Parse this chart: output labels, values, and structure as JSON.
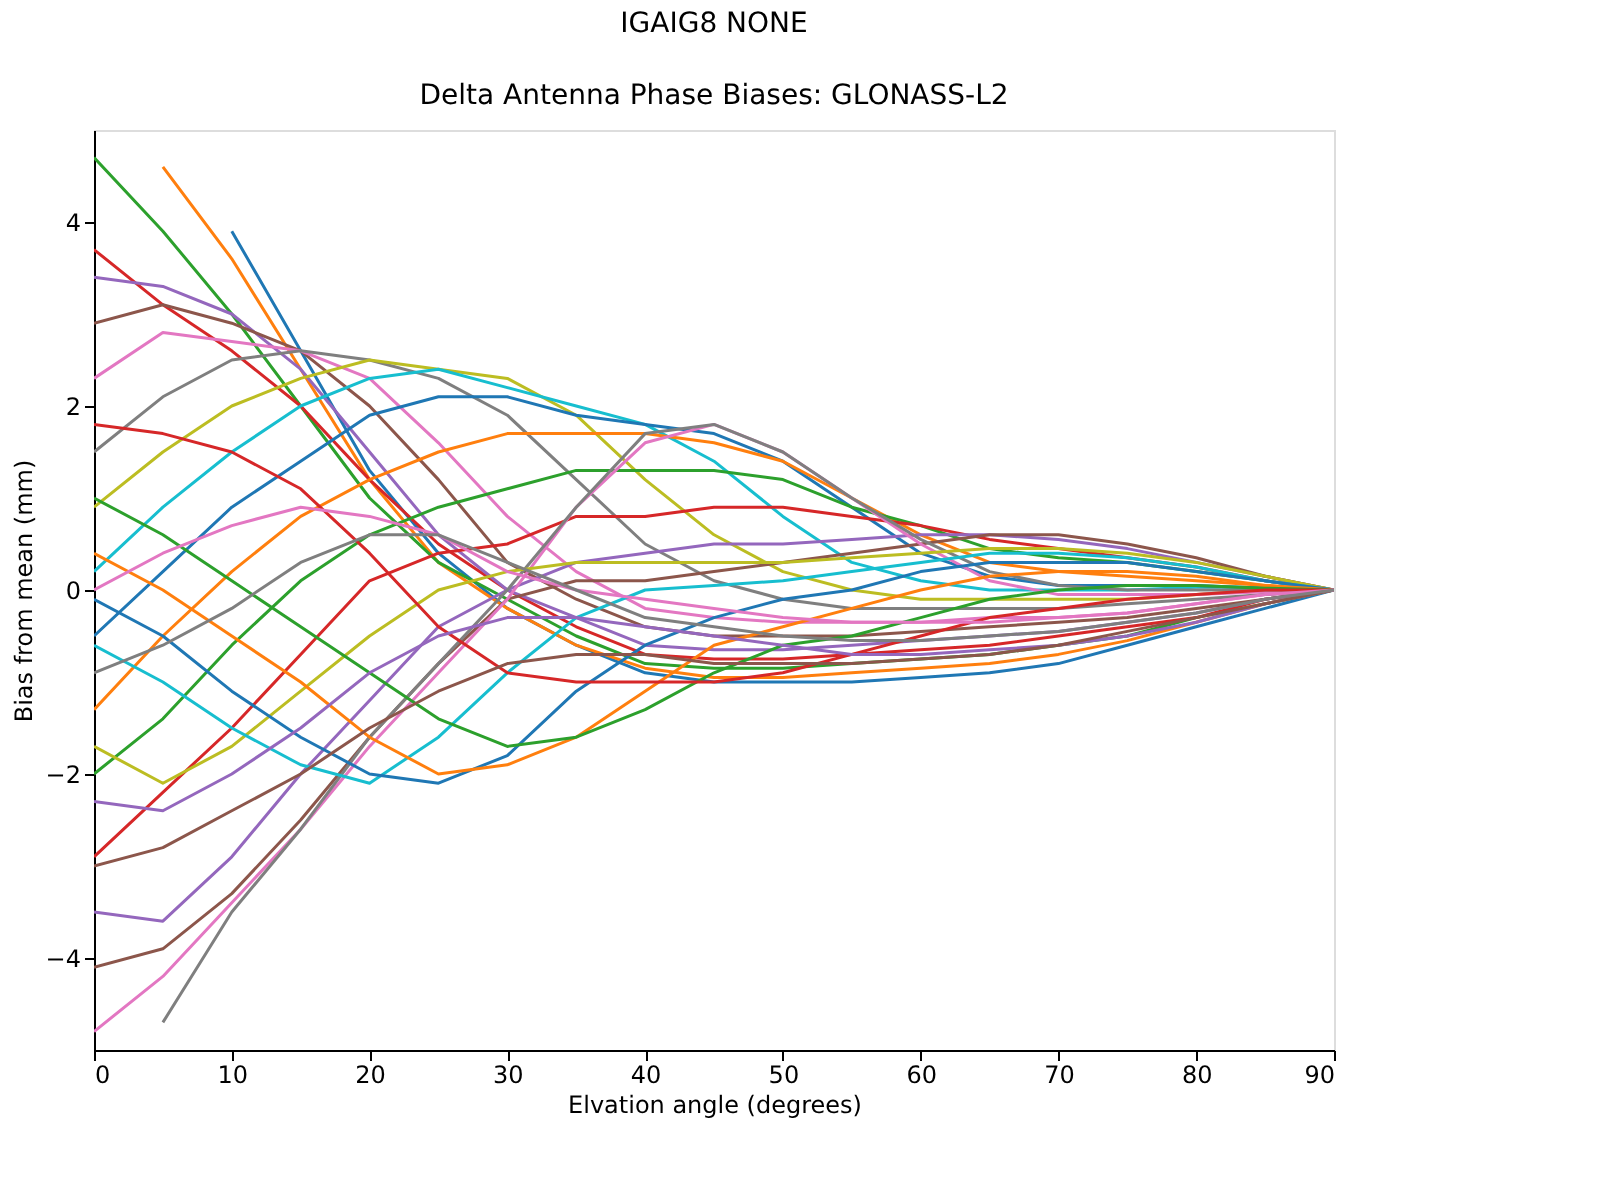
{
  "chart_data": {
    "type": "line",
    "title": "IGAIG8          NONE",
    "subtitle": "Delta Antenna Phase Biases: GLONASS-L2",
    "xlabel": "Elvation angle (degrees)",
    "ylabel": "Bias from mean (mm)",
    "x": [
      0,
      5,
      10,
      15,
      20,
      25,
      30,
      35,
      40,
      45,
      50,
      55,
      60,
      65,
      70,
      75,
      80,
      85,
      90
    ],
    "xlim": [
      0,
      90
    ],
    "xticks": [
      0,
      10,
      20,
      30,
      40,
      50,
      60,
      70,
      80,
      90
    ],
    "ylim": [
      -5,
      5
    ],
    "yticks": [
      -4,
      -2,
      0,
      2,
      4
    ],
    "grid": false,
    "legend": false,
    "line_style": "solid",
    "marker": "none",
    "series": [
      {
        "color": "#1f77b4",
        "values": [
          null,
          null,
          3.9,
          2.6,
          1.3,
          0.4,
          -0.2,
          -0.6,
          -0.9,
          -1.0,
          -1.0,
          -1.0,
          -0.95,
          -0.9,
          -0.8,
          -0.6,
          -0.4,
          -0.2,
          0
        ]
      },
      {
        "color": "#ff7f0e",
        "values": [
          null,
          4.6,
          3.6,
          2.4,
          1.2,
          0.3,
          -0.2,
          -0.6,
          -0.85,
          -0.95,
          -0.95,
          -0.9,
          -0.85,
          -0.8,
          -0.7,
          -0.55,
          -0.35,
          -0.15,
          0
        ]
      },
      {
        "color": "#2ca02c",
        "values": [
          4.7,
          3.9,
          3.0,
          2.0,
          1.0,
          0.3,
          -0.1,
          -0.5,
          -0.8,
          -0.85,
          -0.85,
          -0.8,
          -0.75,
          -0.7,
          -0.6,
          -0.5,
          -0.3,
          -0.15,
          0
        ]
      },
      {
        "color": "#d62728",
        "values": [
          3.7,
          3.1,
          2.6,
          2.0,
          1.2,
          0.5,
          0.0,
          -0.4,
          -0.7,
          -0.75,
          -0.75,
          -0.7,
          -0.65,
          -0.6,
          -0.5,
          -0.4,
          -0.3,
          -0.1,
          0
        ]
      },
      {
        "color": "#9467bd",
        "values": [
          3.4,
          3.3,
          3.0,
          2.4,
          1.5,
          0.6,
          0.0,
          -0.3,
          -0.6,
          -0.65,
          -0.65,
          -0.6,
          -0.55,
          -0.5,
          -0.45,
          -0.35,
          -0.25,
          -0.1,
          0
        ]
      },
      {
        "color": "#8c564b",
        "values": [
          2.9,
          3.1,
          2.9,
          2.6,
          2.0,
          1.2,
          0.3,
          -0.1,
          -0.4,
          -0.5,
          -0.5,
          -0.5,
          -0.45,
          -0.4,
          -0.35,
          -0.3,
          -0.2,
          -0.1,
          0
        ]
      },
      {
        "color": "#e377c2",
        "values": [
          2.3,
          2.8,
          2.7,
          2.6,
          2.3,
          1.6,
          0.8,
          0.2,
          -0.2,
          -0.3,
          -0.35,
          -0.35,
          -0.35,
          -0.3,
          -0.3,
          -0.25,
          -0.15,
          -0.05,
          0
        ]
      },
      {
        "color": "#7f7f7f",
        "values": [
          1.5,
          2.1,
          2.5,
          2.6,
          2.5,
          2.3,
          1.9,
          1.2,
          0.5,
          0.1,
          -0.1,
          -0.2,
          -0.2,
          -0.2,
          -0.2,
          -0.15,
          -0.1,
          -0.05,
          0
        ]
      },
      {
        "color": "#bcbd22",
        "values": [
          0.9,
          1.5,
          2.0,
          2.3,
          2.5,
          2.4,
          2.3,
          1.9,
          1.2,
          0.6,
          0.2,
          0.0,
          -0.1,
          -0.1,
          -0.1,
          -0.1,
          -0.05,
          0,
          0
        ]
      },
      {
        "color": "#17becf",
        "values": [
          0.2,
          0.9,
          1.5,
          2.0,
          2.3,
          2.4,
          2.2,
          2.0,
          1.8,
          1.4,
          0.8,
          0.3,
          0.1,
          0.0,
          0.0,
          0.0,
          0.03,
          0.03,
          0
        ]
      },
      {
        "color": "#1f77b4",
        "values": [
          -0.5,
          0.2,
          0.9,
          1.4,
          1.9,
          2.1,
          2.1,
          1.9,
          1.8,
          1.7,
          1.4,
          0.9,
          0.4,
          0.15,
          0.05,
          0.05,
          0.05,
          0.02,
          0
        ]
      },
      {
        "color": "#ff7f0e",
        "values": [
          -1.3,
          -0.5,
          0.2,
          0.8,
          1.2,
          1.5,
          1.7,
          1.7,
          1.7,
          1.6,
          1.4,
          1.0,
          0.6,
          0.3,
          0.2,
          0.15,
          0.1,
          0.05,
          0
        ]
      },
      {
        "color": "#2ca02c",
        "values": [
          -2.0,
          -1.4,
          -0.6,
          0.1,
          0.6,
          0.9,
          1.1,
          1.3,
          1.3,
          1.3,
          1.2,
          0.9,
          0.7,
          0.45,
          0.35,
          0.3,
          0.2,
          0.1,
          0
        ]
      },
      {
        "color": "#d62728",
        "values": [
          -2.9,
          -2.2,
          -1.5,
          -0.7,
          0.1,
          0.4,
          0.5,
          0.8,
          0.8,
          0.9,
          0.9,
          0.8,
          0.7,
          0.55,
          0.45,
          0.35,
          0.25,
          0.1,
          0
        ]
      },
      {
        "color": "#9467bd",
        "values": [
          -3.5,
          -3.6,
          -2.9,
          -2.0,
          -1.2,
          -0.4,
          0.0,
          0.3,
          0.4,
          0.5,
          0.5,
          0.55,
          0.6,
          0.6,
          0.55,
          0.45,
          0.3,
          0.15,
          0
        ]
      },
      {
        "color": "#8c564b",
        "values": [
          -4.1,
          -3.9,
          -3.3,
          -2.5,
          -1.6,
          -0.8,
          -0.1,
          0.1,
          0.1,
          0.2,
          0.3,
          0.4,
          0.5,
          0.6,
          0.6,
          0.5,
          0.35,
          0.15,
          0
        ]
      },
      {
        "color": "#e377c2",
        "values": [
          -4.8,
          -4.2,
          -3.4,
          -2.6,
          -1.7,
          -0.9,
          -0.1,
          0.9,
          1.6,
          1.8,
          1.5,
          1.0,
          0.5,
          0.1,
          -0.05,
          -0.05,
          -0.05,
          -0.02,
          0
        ]
      },
      {
        "color": "#7f7f7f",
        "values": [
          null,
          -4.7,
          -3.5,
          -2.6,
          -1.6,
          -0.8,
          0.0,
          0.9,
          1.7,
          1.8,
          1.5,
          1.0,
          0.55,
          0.2,
          0.05,
          0.0,
          0.0,
          0.0,
          0
        ]
      },
      {
        "color": "#bcbd22",
        "values": [
          -1.7,
          -2.1,
          -1.7,
          -1.1,
          -0.5,
          0.0,
          0.2,
          0.3,
          0.3,
          0.3,
          0.3,
          0.35,
          0.4,
          0.45,
          0.45,
          0.4,
          0.3,
          0.15,
          0
        ]
      },
      {
        "color": "#17becf",
        "values": [
          -0.6,
          -1.0,
          -1.5,
          -1.9,
          -2.1,
          -1.6,
          -0.9,
          -0.3,
          0.0,
          0.05,
          0.1,
          0.2,
          0.3,
          0.4,
          0.4,
          0.35,
          0.25,
          0.1,
          0
        ]
      },
      {
        "color": "#1f77b4",
        "values": [
          -0.1,
          -0.5,
          -1.1,
          -1.6,
          -2.0,
          -2.1,
          -1.8,
          -1.1,
          -0.6,
          -0.3,
          -0.1,
          0.0,
          0.2,
          0.3,
          0.3,
          0.3,
          0.2,
          0.1,
          0
        ]
      },
      {
        "color": "#ff7f0e",
        "values": [
          0.4,
          0.0,
          -0.5,
          -1.0,
          -1.6,
          -2.0,
          -1.9,
          -1.6,
          -1.1,
          -0.6,
          -0.4,
          -0.2,
          0.0,
          0.15,
          0.2,
          0.2,
          0.15,
          0.05,
          0
        ]
      },
      {
        "color": "#2ca02c",
        "values": [
          1.0,
          0.6,
          0.1,
          -0.4,
          -0.9,
          -1.4,
          -1.7,
          -1.6,
          -1.3,
          -0.9,
          -0.6,
          -0.5,
          -0.3,
          -0.1,
          0.0,
          0.05,
          0.05,
          0.02,
          0
        ]
      },
      {
        "color": "#d62728",
        "values": [
          1.8,
          1.7,
          1.5,
          1.1,
          0.4,
          -0.4,
          -0.9,
          -1.0,
          -1.0,
          -1.0,
          -0.9,
          -0.7,
          -0.5,
          -0.3,
          -0.2,
          -0.1,
          -0.05,
          0,
          0
        ]
      },
      {
        "color": "#9467bd",
        "values": [
          -2.3,
          -2.4,
          -2.0,
          -1.5,
          -0.9,
          -0.5,
          -0.3,
          -0.3,
          -0.4,
          -0.5,
          -0.6,
          -0.7,
          -0.7,
          -0.65,
          -0.6,
          -0.5,
          -0.35,
          -0.15,
          0
        ]
      },
      {
        "color": "#8c564b",
        "values": [
          -3.0,
          -2.8,
          -2.4,
          -2.0,
          -1.5,
          -1.1,
          -0.8,
          -0.7,
          -0.7,
          -0.8,
          -0.8,
          -0.8,
          -0.75,
          -0.7,
          -0.6,
          -0.45,
          -0.3,
          -0.15,
          0
        ]
      },
      {
        "color": "#e377c2",
        "values": [
          0.0,
          0.4,
          0.7,
          0.9,
          0.8,
          0.6,
          0.2,
          0.0,
          -0.1,
          -0.2,
          -0.3,
          -0.35,
          -0.35,
          -0.35,
          -0.3,
          -0.25,
          -0.15,
          -0.05,
          0
        ]
      },
      {
        "color": "#7f7f7f",
        "values": [
          -0.9,
          -0.6,
          -0.2,
          0.3,
          0.6,
          0.6,
          0.3,
          0.0,
          -0.3,
          -0.4,
          -0.5,
          -0.55,
          -0.55,
          -0.5,
          -0.45,
          -0.35,
          -0.25,
          -0.1,
          0
        ]
      }
    ]
  }
}
